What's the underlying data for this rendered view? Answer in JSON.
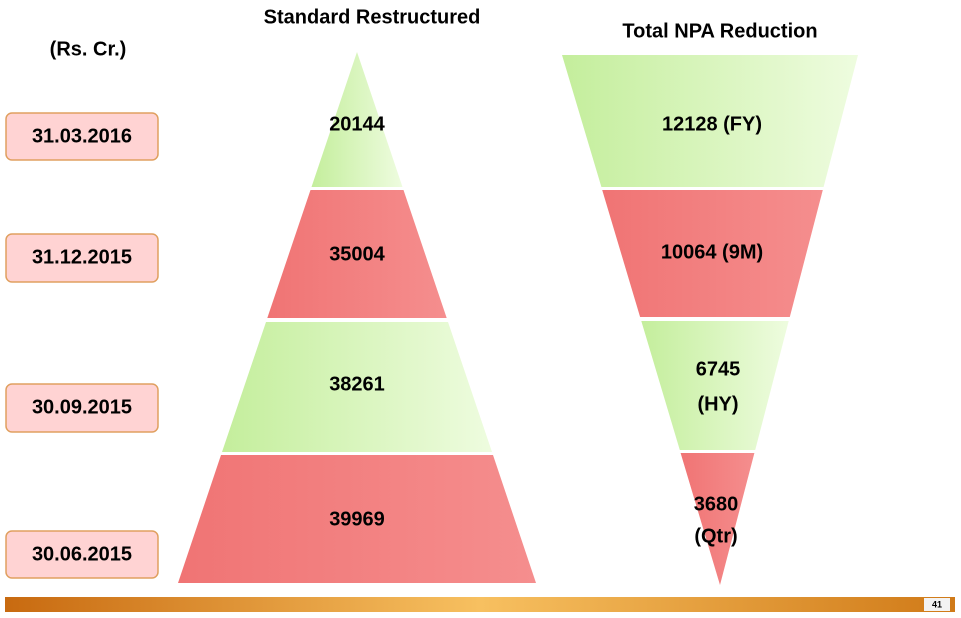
{
  "unit": "(Rs. Cr.)",
  "dates": [
    "31.03.2016",
    "31.12.2015",
    "30.09.2015",
    "30.06.2015"
  ],
  "standard_restructured": {
    "title": "Standard Restructured",
    "levels": [
      "20144",
      "35004",
      "38261",
      "39969"
    ]
  },
  "npa_reduction": {
    "title": "Total NPA Reduction",
    "levels": [
      [
        "12128 (FY)"
      ],
      [
        "10064 (9M)"
      ],
      [
        "6745",
        "(HY)"
      ],
      [
        "3680",
        "(Qtr)"
      ]
    ]
  },
  "page_number": "41"
}
